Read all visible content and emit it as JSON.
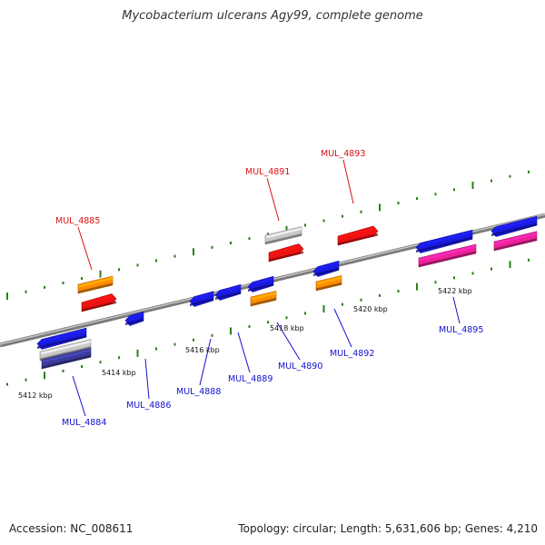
{
  "title": "Mycobacterium ulcerans Agy99, complete genome",
  "footer": {
    "accession": "Accession: NC_008611",
    "summary": "Topology: circular; Length: 5,631,606 bp; Genes: 4,210"
  },
  "colors": {
    "backbone": "#7a7a7a",
    "tick": "#2e7d1e",
    "label_top": "#dd1111",
    "label_bottom": "#1111cc",
    "blue": "#1a1ae6",
    "red": "#ee1111",
    "orange": "#ff8c00",
    "magenta": "#ee2299",
    "grey": "#c8c8c8",
    "navy": "#3a3a9a"
  },
  "ruler_labels": [
    "5412 kbp",
    "5414 kbp",
    "5416 kbp",
    "5418 kbp",
    "5420 kbp",
    "5422 kbp"
  ],
  "genes_top": [
    {
      "label": "MUL_4885"
    },
    {
      "label": "MUL_4891"
    },
    {
      "label": "MUL_4893"
    }
  ],
  "genes_bottom": [
    {
      "label": "MUL_4884"
    },
    {
      "label": "MUL_4886"
    },
    {
      "label": "MUL_4888"
    },
    {
      "label": "MUL_4889"
    },
    {
      "label": "MUL_4890"
    },
    {
      "label": "MUL_4892"
    },
    {
      "label": "MUL_4895"
    }
  ]
}
